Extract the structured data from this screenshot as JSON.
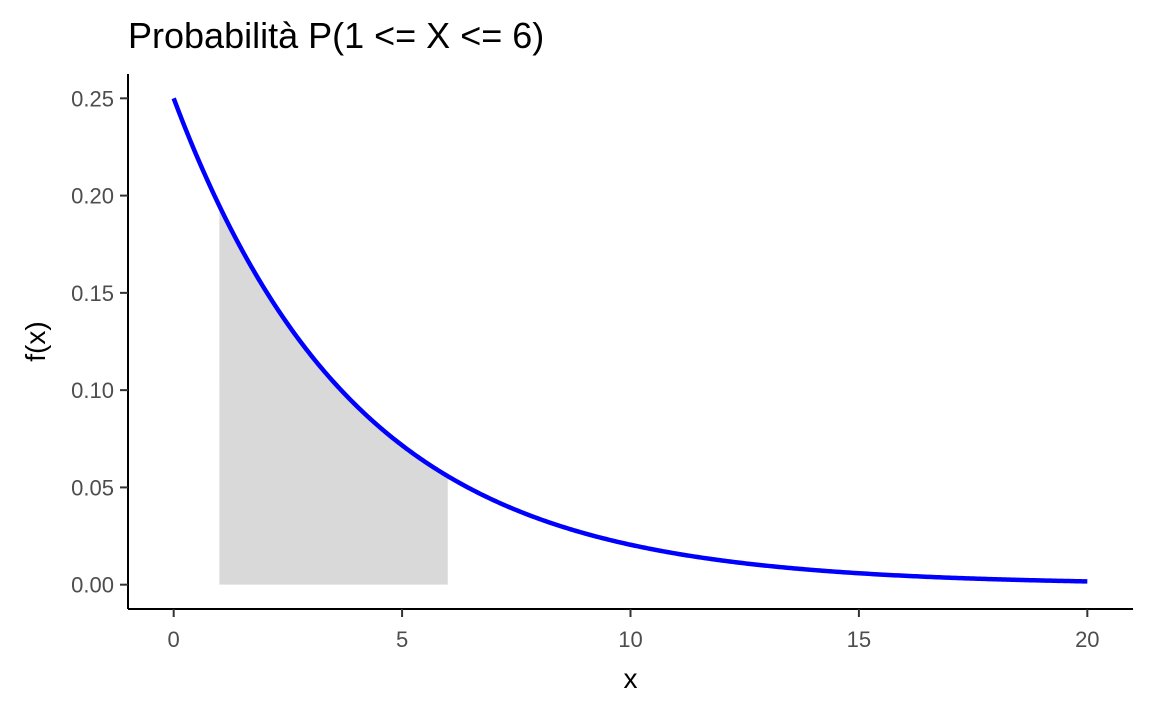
{
  "chart_data": {
    "type": "line",
    "title": "Probabilità P(1 <= X <= 6)",
    "xlabel": "x",
    "ylabel": "f(x)",
    "xlim": [
      -1,
      21
    ],
    "ylim": [
      -0.0125,
      0.2625
    ],
    "x_ticks": [
      0,
      5,
      10,
      15,
      20
    ],
    "x_tick_labels": [
      "0",
      "5",
      "10",
      "15",
      "20"
    ],
    "y_ticks": [
      0,
      0.05,
      0.1,
      0.15,
      0.2,
      0.25
    ],
    "y_tick_labels": [
      "0.00",
      "0.05",
      "0.10",
      "0.15",
      "0.20",
      "0.25"
    ],
    "grid": false,
    "legend": "none",
    "series": [
      {
        "x": [
          0,
          1,
          2,
          3,
          4,
          5,
          6,
          7,
          8,
          9,
          10,
          11,
          12,
          13,
          14,
          15,
          16,
          17,
          18,
          19,
          20
        ],
        "y": [
          0.25,
          0.195,
          0.152,
          0.118,
          0.092,
          0.072,
          0.056,
          0.044,
          0.034,
          0.026,
          0.021,
          0.016,
          0.012,
          0.0097,
          0.0075,
          0.0059,
          0.0046,
          0.0036,
          0.0028,
          0.0022,
          0.0017
        ],
        "color": "#0000ff"
      }
    ],
    "shaded_region": {
      "from": 1,
      "to": 6,
      "color": "#d9d9d9"
    }
  }
}
